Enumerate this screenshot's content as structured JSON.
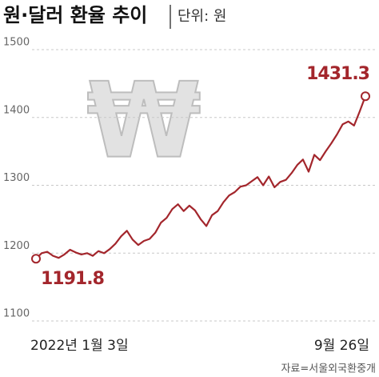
{
  "chart_data": {
    "type": "line",
    "title": "원·달러 환율 추이",
    "subtitle": "단위: 원",
    "source": "자료=서울외국환중개",
    "watermark": "₩",
    "categories": [
      "2022년 1월 3일",
      null,
      null,
      null,
      null,
      null,
      null,
      null,
      null,
      null,
      null,
      null,
      null,
      null,
      null,
      null,
      null,
      null,
      null,
      null,
      null,
      null,
      null,
      null,
      null,
      null,
      null,
      null,
      null,
      null,
      null,
      null,
      null,
      null,
      null,
      null,
      null,
      null,
      null,
      null,
      null,
      null,
      null,
      null,
      null,
      null,
      null,
      null,
      null,
      null,
      null,
      null,
      null,
      null,
      null,
      null,
      null,
      null,
      "9월 26일"
    ],
    "series": [
      {
        "name": "원·달러 환율",
        "color": "#a3262c",
        "values": [
          1191.8,
          1200,
          1202,
          1196,
          1193,
          1198,
          1205,
          1201,
          1198,
          1200,
          1196,
          1203,
          1200,
          1206,
          1214,
          1225,
          1233,
          1220,
          1212,
          1218,
          1221,
          1230,
          1245,
          1252,
          1265,
          1272,
          1262,
          1270,
          1263,
          1250,
          1240,
          1256,
          1262,
          1275,
          1285,
          1290,
          1298,
          1300,
          1306,
          1312,
          1300,
          1313,
          1297,
          1305,
          1308,
          1318,
          1330,
          1338,
          1320,
          1345,
          1337,
          1350,
          1362,
          1375,
          1390,
          1394,
          1388,
          1409,
          1431.3
        ]
      }
    ],
    "ylim": [
      1100,
      1500
    ],
    "yticks": [
      1100,
      1200,
      1300,
      1400,
      1500
    ],
    "grid": true
  }
}
